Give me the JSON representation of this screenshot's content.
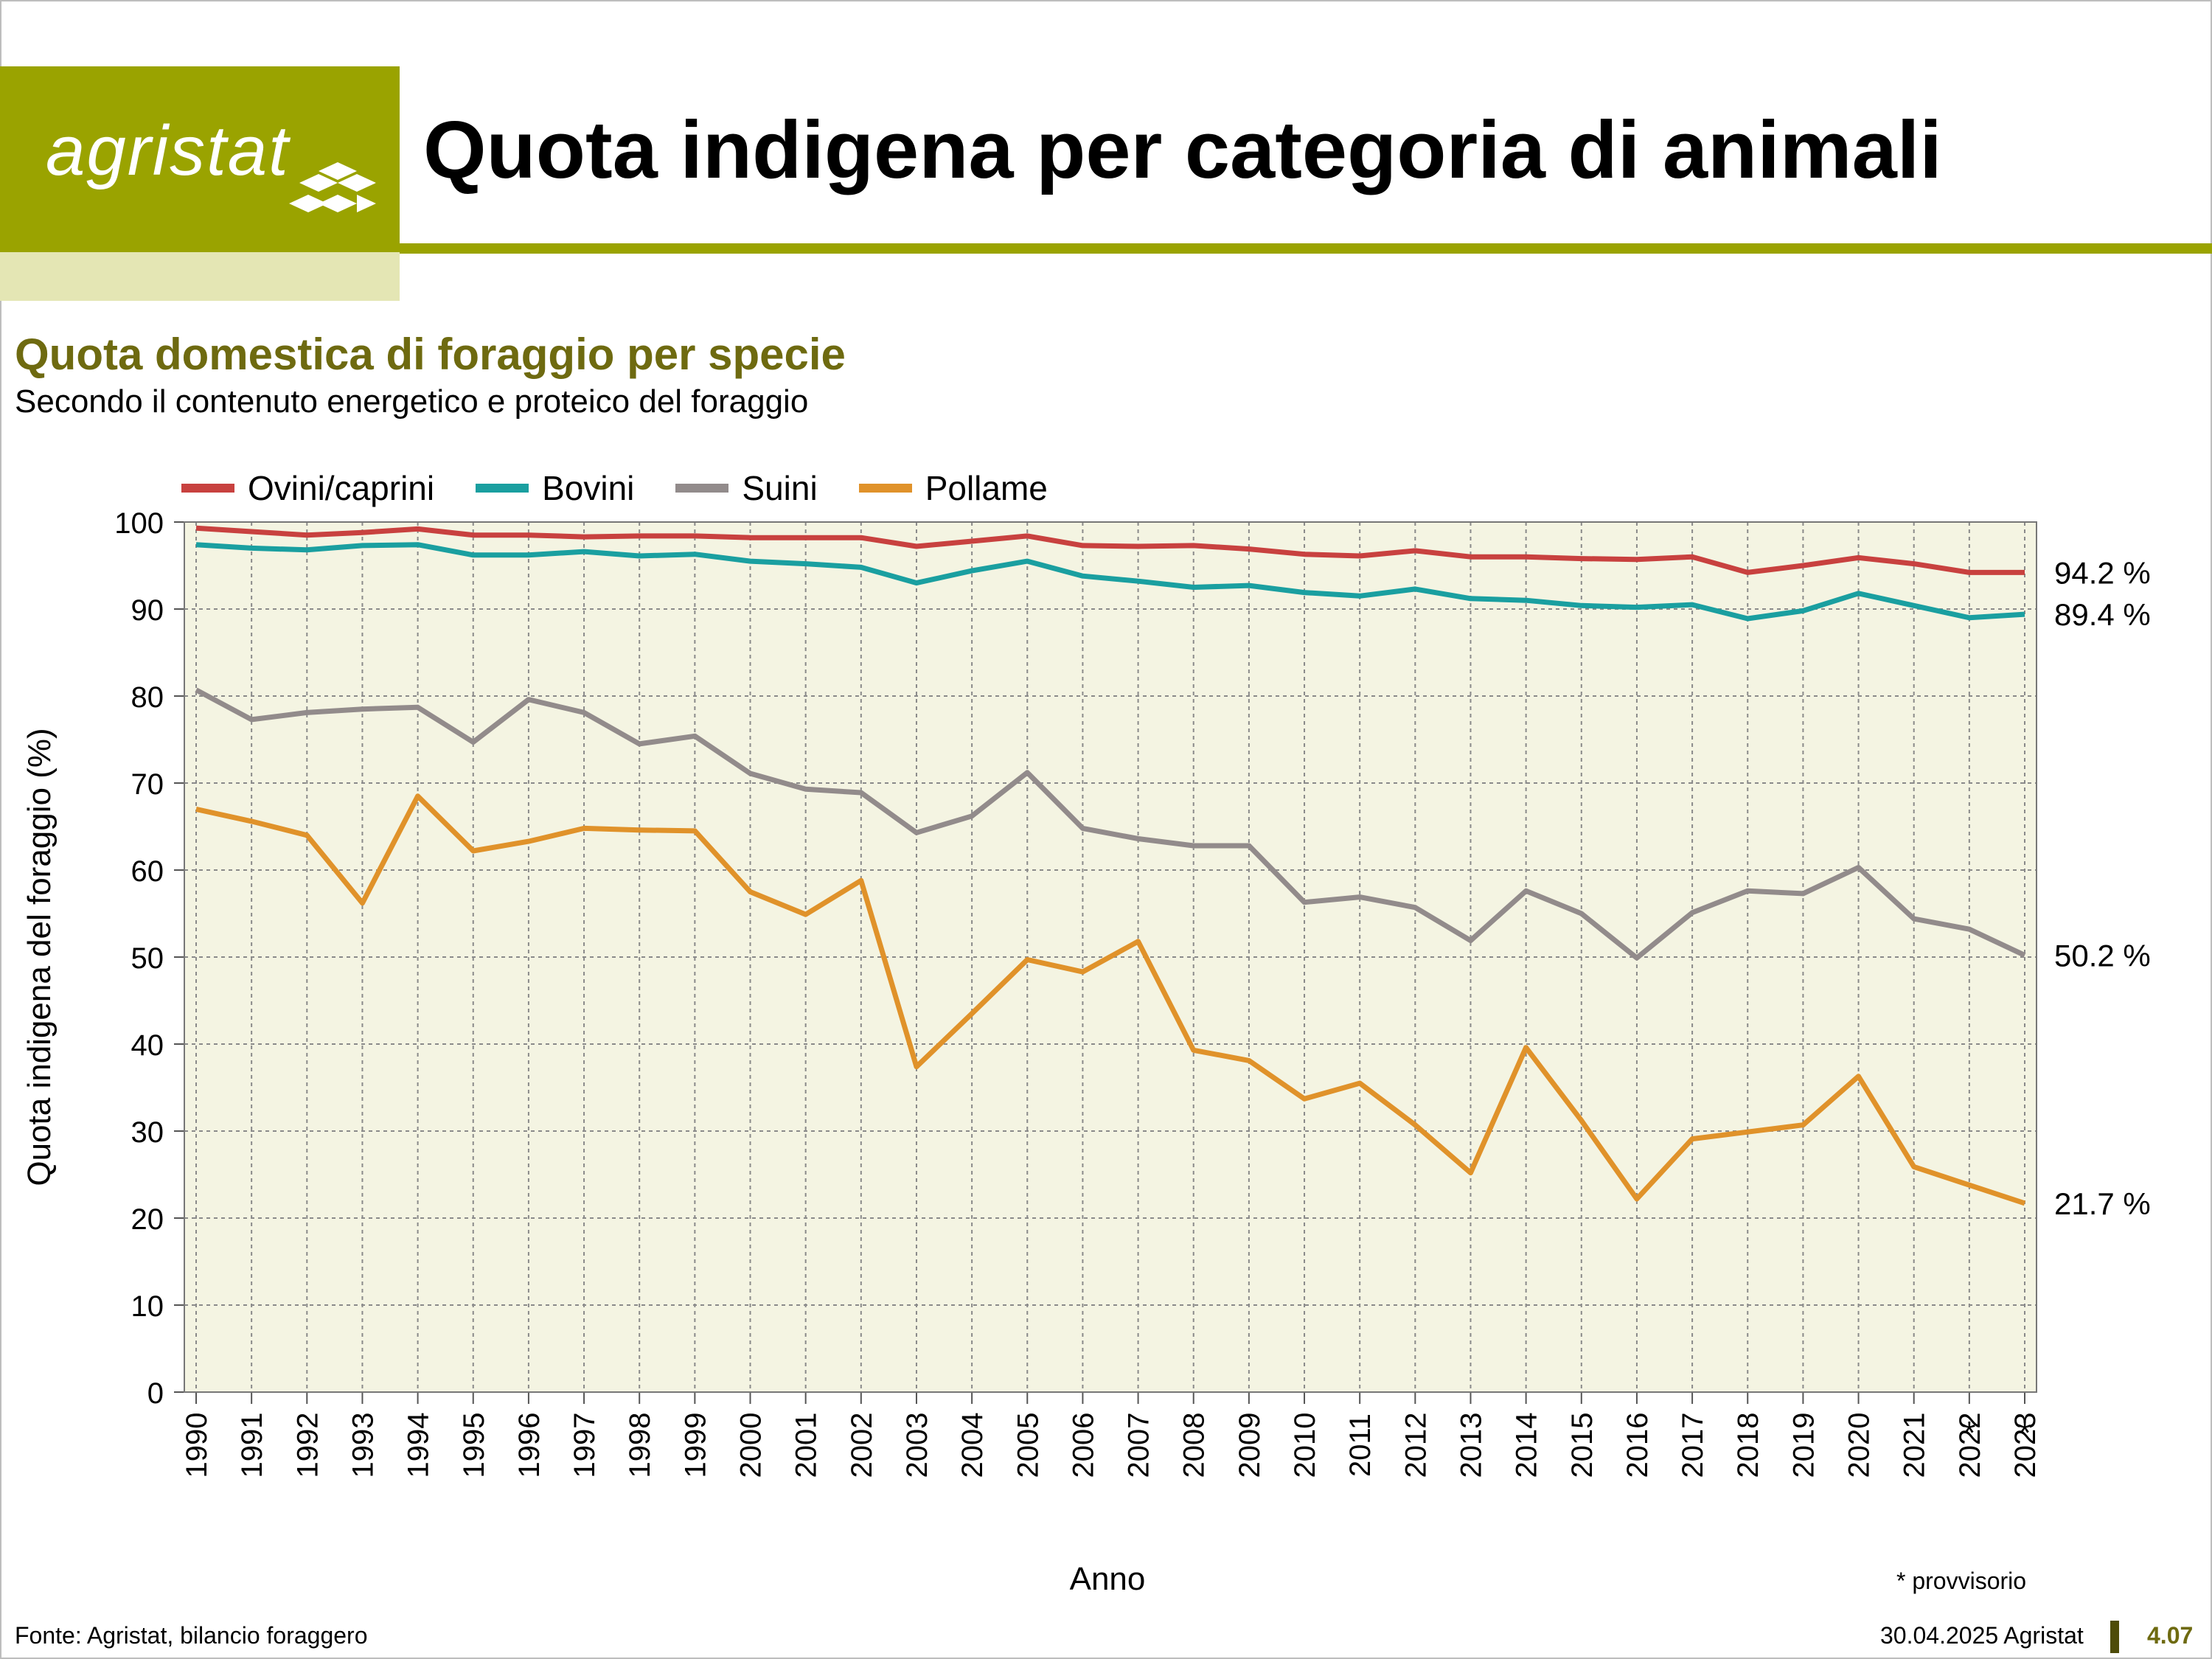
{
  "header": {
    "logo_text": "agristat",
    "title": "Quota indigena per categoria di animali"
  },
  "heading": {
    "subtitle": "Quota domestica di foraggio per specie",
    "subtitle2": "Secondo il contenuto energetico e proteico del foraggio"
  },
  "footer": {
    "source": "Fonte: Agristat, bilancio foraggero",
    "date": "30.04.2025 Agristat",
    "number": "4.07",
    "note": "* provvisorio"
  },
  "colors": {
    "brand": "#9aa300",
    "brand_light": "#e4e6b4",
    "plot_bg": "#f4f4e2"
  },
  "chart_data": {
    "type": "line",
    "xlabel": "Anno",
    "ylabel": "Quota indigena del foraggio (%)",
    "ylim": [
      0,
      100
    ],
    "yticks": [
      0,
      10,
      20,
      30,
      40,
      50,
      60,
      70,
      80,
      90,
      100
    ],
    "grid": true,
    "legend_position": "top-left",
    "categories": [
      "1990",
      "1991",
      "1992",
      "1993",
      "1994",
      "1995",
      "1996",
      "1997",
      "1998",
      "1999",
      "2000",
      "2001",
      "2002",
      "2003",
      "2004",
      "2005",
      "2006",
      "2007",
      "2008",
      "2009",
      "2010",
      "2011",
      "2012",
      "2013",
      "2014",
      "2015",
      "2016",
      "2017",
      "2018",
      "2019",
      "2020",
      "2021",
      "2022",
      "2023"
    ],
    "provisional_marker": "*",
    "provisional_years": [
      "2022",
      "2023"
    ],
    "series": [
      {
        "name": "Ovini/caprini",
        "color": "#c8413f",
        "end_label": "94.2 %",
        "values": [
          99.3,
          98.9,
          98.5,
          98.8,
          99.2,
          98.5,
          98.5,
          98.3,
          98.4,
          98.4,
          98.2,
          98.2,
          98.2,
          97.2,
          97.8,
          98.4,
          97.3,
          97.2,
          97.3,
          96.9,
          96.3,
          96.1,
          96.7,
          96.0,
          96.0,
          95.8,
          95.7,
          96.0,
          94.2,
          95.0,
          95.9,
          95.2,
          94.2,
          94.2
        ]
      },
      {
        "name": "Bovini",
        "color": "#1a9fa0",
        "end_label": "89.4 %",
        "values": [
          97.4,
          97.0,
          96.8,
          97.3,
          97.4,
          96.2,
          96.2,
          96.6,
          96.1,
          96.3,
          95.5,
          95.2,
          94.8,
          93.0,
          94.4,
          95.5,
          93.8,
          93.2,
          92.5,
          92.7,
          91.9,
          91.5,
          92.3,
          91.2,
          91.0,
          90.4,
          90.2,
          90.5,
          88.9,
          89.8,
          91.8,
          90.4,
          89.0,
          89.4
        ]
      },
      {
        "name": "Suini",
        "color": "#928b8b",
        "end_label": "50.2 %",
        "values": [
          80.7,
          77.3,
          78.1,
          78.5,
          78.7,
          74.7,
          79.6,
          78.1,
          74.5,
          75.4,
          71.1,
          69.3,
          68.9,
          64.3,
          66.2,
          71.2,
          64.8,
          63.6,
          62.8,
          62.8,
          56.3,
          56.9,
          55.7,
          51.9,
          57.6,
          55.0,
          49.9,
          55.1,
          57.6,
          57.3,
          60.3,
          54.4,
          53.2,
          50.2
        ]
      },
      {
        "name": "Pollame",
        "color": "#e0922a",
        "end_label": "21.7 %",
        "values": [
          67.0,
          65.6,
          64.0,
          56.2,
          68.5,
          62.2,
          63.3,
          64.8,
          64.6,
          64.5,
          57.5,
          54.9,
          58.8,
          37.4,
          43.5,
          49.7,
          48.3,
          51.8,
          39.3,
          38.1,
          33.7,
          35.5,
          30.7,
          25.2,
          39.6,
          31.2,
          22.2,
          29.1,
          29.9,
          30.7,
          36.3,
          25.9,
          23.8,
          21.7
        ]
      }
    ]
  }
}
